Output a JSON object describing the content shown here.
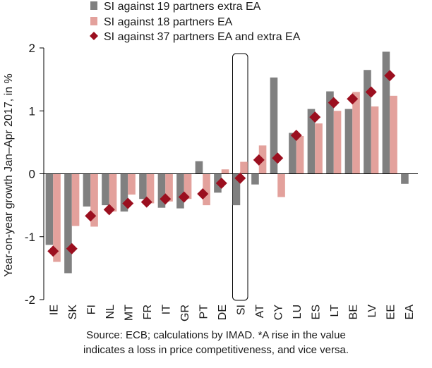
{
  "chart_data": {
    "type": "bar",
    "ylabel": "Year-on-year growth Jan–Apr 2017, in %",
    "ylim": [
      -2,
      2
    ],
    "yticks": [
      "-2",
      "-1",
      "0",
      "1",
      "2"
    ],
    "ytick_values": [
      -2,
      -1,
      0,
      1,
      2
    ],
    "categories": [
      "IE",
      "SK",
      "FI",
      "NL",
      "MT",
      "FR",
      "IT",
      "GR",
      "PT",
      "DE",
      "SI",
      "AT",
      "CY",
      "LU",
      "ES",
      "LT",
      "BE",
      "LV",
      "EE",
      "EA"
    ],
    "highlighted_category": "SI",
    "legend_position": "top-left",
    "series": [
      {
        "name": "SI against 19 partners extra EA",
        "kind": "bar",
        "color": "#808080",
        "values": [
          -1.13,
          -1.58,
          -0.52,
          -0.5,
          -0.6,
          -0.4,
          -0.54,
          -0.55,
          0.2,
          -0.3,
          -0.5,
          -0.17,
          1.53,
          0.65,
          1.03,
          1.31,
          1.03,
          1.65,
          1.94,
          -0.16
        ]
      },
      {
        "name": "SI against 18 partners EA",
        "kind": "bar",
        "color": "#e3a19c",
        "values": [
          -1.4,
          -0.83,
          -0.84,
          -0.6,
          -0.33,
          -0.47,
          -0.44,
          -0.4,
          -0.5,
          0.07,
          0.19,
          0.45,
          -0.37,
          0.6,
          0.8,
          1.0,
          1.3,
          1.07,
          1.24,
          null
        ]
      },
      {
        "name": "SI against 37 partners EA and extra EA",
        "kind": "marker",
        "color": "#9b0f1f",
        "values": [
          -1.23,
          -1.19,
          -0.67,
          -0.57,
          -0.47,
          -0.45,
          -0.4,
          -0.37,
          -0.32,
          -0.15,
          -0.07,
          0.22,
          0.25,
          0.61,
          0.9,
          1.13,
          1.19,
          1.3,
          1.56,
          null
        ]
      }
    ]
  },
  "source_note": {
    "line1": "Source: ECB; calculations by IMAD. *A rise in the value",
    "line2": "indicates a loss in price competitiveness, and vice versa."
  }
}
